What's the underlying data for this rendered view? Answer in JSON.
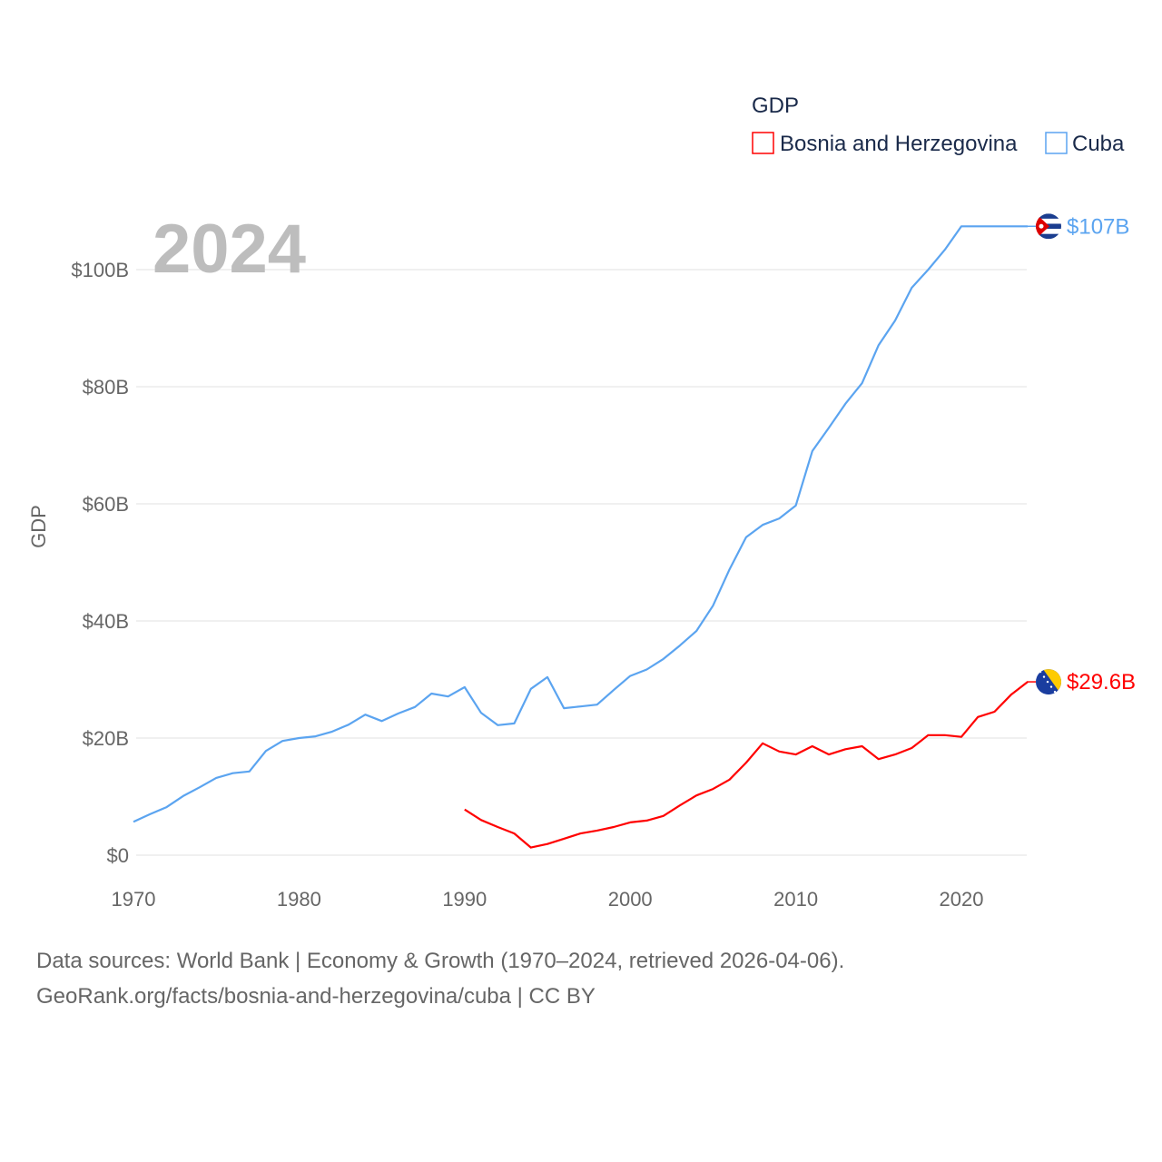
{
  "chart_data": {
    "type": "line",
    "title": "GDP",
    "year_watermark": "2024",
    "ylabel": "GDP",
    "xlabel": "",
    "xlim": [
      1970,
      2024
    ],
    "ylim": [
      0,
      110
    ],
    "x_ticks": [
      1970,
      1980,
      1990,
      2000,
      2010,
      2020
    ],
    "x_tick_labels": [
      "1970",
      "1980",
      "1990",
      "2000",
      "2010",
      "2020"
    ],
    "y_ticks": [
      0,
      20,
      40,
      60,
      80,
      100
    ],
    "y_tick_labels": [
      "$0",
      "$20B",
      "$40B",
      "$60B",
      "$80B",
      "$100B"
    ],
    "grid": true,
    "legend_position": "top-right",
    "series": [
      {
        "name": "Bosnia and Herzegovina",
        "color": "#ff0000",
        "end_label": "$29.6B",
        "flag": "bosnia-flag",
        "start_year": 1990,
        "values": [
          7.8,
          6.0,
          4.8,
          3.7,
          1.3,
          1.9,
          2.8,
          3.7,
          4.2,
          4.8,
          5.6,
          5.9,
          6.7,
          8.5,
          10.2,
          11.3,
          12.9,
          15.8,
          19.1,
          17.7,
          17.2,
          18.6,
          17.2,
          18.1,
          18.6,
          16.4,
          17.2,
          18.3,
          20.5,
          20.5,
          20.2,
          23.6,
          24.5,
          27.4,
          29.6
        ]
      },
      {
        "name": "Cuba",
        "color": "#5ba4f0",
        "end_label": "$107B",
        "flag": "cuba-flag",
        "start_year": 1970,
        "values": [
          5.7,
          7.0,
          8.2,
          10.1,
          11.6,
          13.2,
          14.0,
          14.3,
          17.8,
          19.5,
          20.0,
          20.3,
          21.1,
          22.3,
          24.0,
          22.9,
          24.2,
          25.3,
          27.6,
          27.1,
          28.7,
          24.3,
          22.2,
          22.5,
          28.4,
          30.4,
          25.1,
          25.4,
          25.7,
          28.2,
          30.6,
          31.7,
          33.5,
          35.8,
          38.3,
          42.6,
          48.8,
          54.3,
          56.4,
          57.5,
          59.7,
          69.0,
          73.0,
          77.1,
          80.6,
          87.1,
          91.3,
          96.9,
          100.0,
          103.4,
          107.4,
          107.4,
          107.4,
          107.4,
          107.4
        ]
      }
    ]
  },
  "footer": {
    "line1": "Data sources: World Bank | Economy & Growth (1970–2024, retrieved 2026-04-06).",
    "line2": "GeoRank.org/facts/bosnia-and-herzegovina/cuba | CC BY"
  }
}
